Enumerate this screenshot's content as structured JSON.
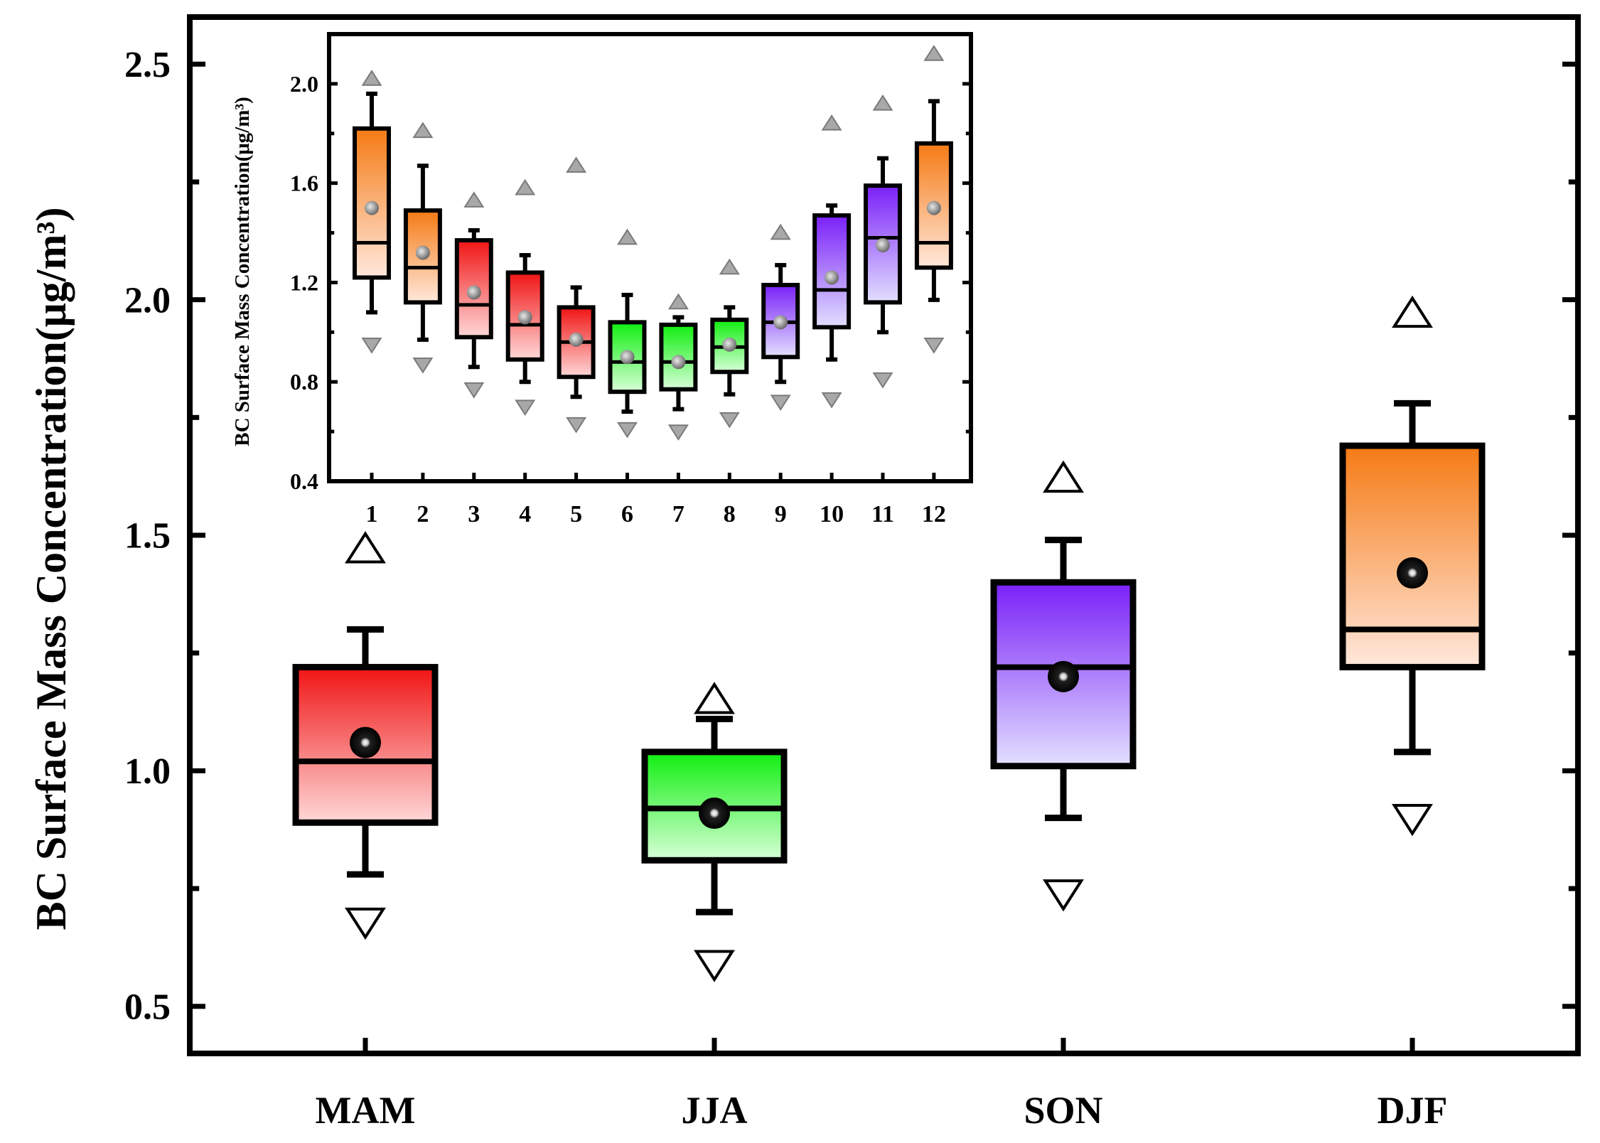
{
  "chart_data": [
    {
      "id": "main",
      "type": "box",
      "title": "",
      "xlabel": "",
      "ylabel": "BC Surface Mass Concentration(μg/m³)",
      "ylim": [
        0.4,
        2.6
      ],
      "yticks": [
        "0.5",
        "1.0",
        "1.5",
        "2.0",
        "2.5"
      ],
      "categories": [
        "MAM",
        "JJA",
        "SON",
        "DJF"
      ],
      "colors": {
        "MAM": [
          "#f01414",
          "#ffd8d8"
        ],
        "JJA": [
          "#10ee10",
          "#d8ffd8"
        ],
        "SON": [
          "#7a20f8",
          "#e2e0ff"
        ],
        "DJF": [
          "#f57a14",
          "#ffe8dc"
        ]
      },
      "boxes": [
        {
          "category": "MAM",
          "min": 0.68,
          "whisker_low": 0.78,
          "q1": 0.89,
          "median": 1.02,
          "mean": 1.06,
          "q3": 1.22,
          "whisker_high": 1.3,
          "max": 1.47
        },
        {
          "category": "JJA",
          "min": 0.59,
          "whisker_low": 0.7,
          "q1": 0.81,
          "median": 0.92,
          "mean": 0.91,
          "q3": 1.04,
          "whisker_high": 1.11,
          "max": 1.15
        },
        {
          "category": "SON",
          "min": 0.74,
          "whisker_low": 0.9,
          "q1": 1.01,
          "median": 1.22,
          "mean": 1.2,
          "q3": 1.4,
          "whisker_high": 1.49,
          "max": 1.62
        },
        {
          "category": "DJF",
          "min": 0.9,
          "whisker_low": 1.04,
          "q1": 1.22,
          "median": 1.3,
          "mean": 1.42,
          "q3": 1.69,
          "whisker_high": 1.78,
          "max": 1.97
        }
      ]
    },
    {
      "id": "inset",
      "type": "box",
      "title": "",
      "xlabel": "",
      "ylabel": "BC Surface Mass Concentration(μg/m³)",
      "ylim": [
        0.4,
        2.2
      ],
      "yticks": [
        "0.4",
        "0.8",
        "1.2",
        "1.6",
        "2.0"
      ],
      "categories": [
        "1",
        "2",
        "3",
        "4",
        "5",
        "6",
        "7",
        "8",
        "9",
        "10",
        "11",
        "12"
      ],
      "boxes": [
        {
          "category": "1",
          "season": "DJF",
          "min": 0.95,
          "whisker_low": 1.08,
          "q1": 1.22,
          "median": 1.36,
          "mean": 1.5,
          "q3": 1.82,
          "whisker_high": 1.96,
          "max": 2.02
        },
        {
          "category": "2",
          "season": "DJF",
          "min": 0.87,
          "whisker_low": 0.97,
          "q1": 1.12,
          "median": 1.26,
          "mean": 1.32,
          "q3": 1.49,
          "whisker_high": 1.67,
          "max": 1.81
        },
        {
          "category": "3",
          "season": "MAM",
          "min": 0.77,
          "whisker_low": 0.86,
          "q1": 0.98,
          "median": 1.11,
          "mean": 1.16,
          "q3": 1.37,
          "whisker_high": 1.41,
          "max": 1.53
        },
        {
          "category": "4",
          "season": "MAM",
          "min": 0.7,
          "whisker_low": 0.8,
          "q1": 0.89,
          "median": 1.03,
          "mean": 1.06,
          "q3": 1.24,
          "whisker_high": 1.31,
          "max": 1.58
        },
        {
          "category": "5",
          "season": "MAM",
          "min": 0.63,
          "whisker_low": 0.74,
          "q1": 0.82,
          "median": 0.96,
          "mean": 0.97,
          "q3": 1.1,
          "whisker_high": 1.18,
          "max": 1.67
        },
        {
          "category": "6",
          "season": "JJA",
          "min": 0.61,
          "whisker_low": 0.68,
          "q1": 0.76,
          "median": 0.88,
          "mean": 0.9,
          "q3": 1.04,
          "whisker_high": 1.15,
          "max": 1.38
        },
        {
          "category": "7",
          "season": "JJA",
          "min": 0.6,
          "whisker_low": 0.69,
          "q1": 0.77,
          "median": 0.88,
          "mean": 0.88,
          "q3": 1.03,
          "whisker_high": 1.06,
          "max": 1.12
        },
        {
          "category": "8",
          "season": "JJA",
          "min": 0.65,
          "whisker_low": 0.75,
          "q1": 0.84,
          "median": 0.94,
          "mean": 0.95,
          "q3": 1.05,
          "whisker_high": 1.1,
          "max": 1.26
        },
        {
          "category": "9",
          "season": "SON",
          "min": 0.72,
          "whisker_low": 0.8,
          "q1": 0.9,
          "median": 1.04,
          "mean": 1.04,
          "q3": 1.19,
          "whisker_high": 1.27,
          "max": 1.4
        },
        {
          "category": "10",
          "season": "SON",
          "min": 0.73,
          "whisker_low": 0.89,
          "q1": 1.02,
          "median": 1.17,
          "mean": 1.22,
          "q3": 1.47,
          "whisker_high": 1.51,
          "max": 1.84
        },
        {
          "category": "11",
          "season": "SON",
          "min": 0.81,
          "whisker_low": 1.0,
          "q1": 1.12,
          "median": 1.38,
          "mean": 1.35,
          "q3": 1.59,
          "whisker_high": 1.7,
          "max": 1.92
        },
        {
          "category": "12",
          "season": "DJF",
          "min": 0.95,
          "whisker_low": 1.13,
          "q1": 1.26,
          "median": 1.36,
          "mean": 1.5,
          "q3": 1.76,
          "whisker_high": 1.93,
          "max": 2.12
        }
      ]
    }
  ]
}
